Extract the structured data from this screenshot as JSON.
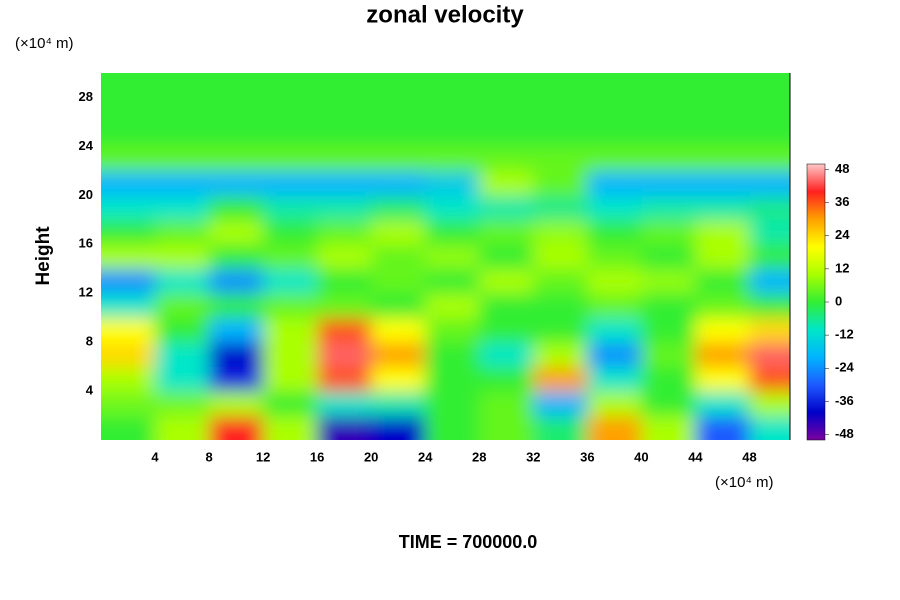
{
  "chart_data": {
    "type": "contourf",
    "title": "zonal velocity",
    "y_label": "Height",
    "y_unit": "(×10⁴ m)",
    "x_unit": "(×10⁴ m)",
    "annotation": "TIME = 700000.0",
    "xlim": [
      0,
      51
    ],
    "ylim": [
      0,
      30
    ],
    "xticks": [
      4,
      8,
      12,
      16,
      20,
      24,
      28,
      32,
      36,
      40,
      44,
      48
    ],
    "yticks": [
      4,
      8,
      12,
      16,
      20,
      24,
      28
    ],
    "clim": [
      -50,
      50
    ],
    "cticks": [
      48,
      36,
      24,
      12,
      0,
      -12,
      -24,
      -36,
      -48
    ],
    "colors": [
      "#7a00a0",
      "#0000c8",
      "#1e5aff",
      "#00b4ff",
      "#00e6c8",
      "#33ee33",
      "#aaff00",
      "#ffff00",
      "#ffa000",
      "#ff2020",
      "#ffc8c8"
    ],
    "x": [
      2,
      6,
      10,
      14,
      18,
      22,
      26,
      30,
      34,
      38,
      42,
      46,
      50
    ],
    "y": [
      1,
      3,
      5,
      7,
      9,
      11,
      13,
      15,
      17,
      19,
      21,
      23,
      25,
      27,
      29
    ],
    "z": [
      [
        0,
        10,
        40,
        10,
        -44,
        -40,
        0,
        4,
        -4,
        30,
        10,
        -30,
        -10
      ],
      [
        5,
        5,
        10,
        0,
        -10,
        -8,
        0,
        4,
        -20,
        10,
        0,
        -10,
        10
      ],
      [
        10,
        -10,
        -36,
        10,
        36,
        20,
        0,
        0,
        30,
        -10,
        0,
        20,
        36
      ],
      [
        24,
        -10,
        -40,
        10,
        44,
        30,
        0,
        -10,
        10,
        -24,
        4,
        30,
        44
      ],
      [
        20,
        0,
        -20,
        10,
        36,
        20,
        4,
        0,
        0,
        -10,
        0,
        20,
        24
      ],
      [
        -10,
        4,
        0,
        4,
        4,
        0,
        10,
        0,
        0,
        4,
        0,
        4,
        0
      ],
      [
        -24,
        -10,
        -24,
        -10,
        0,
        4,
        0,
        10,
        4,
        10,
        8,
        0,
        -20
      ],
      [
        10,
        10,
        0,
        4,
        10,
        4,
        8,
        0,
        10,
        4,
        0,
        10,
        0
      ],
      [
        0,
        4,
        10,
        0,
        4,
        10,
        0,
        4,
        8,
        0,
        4,
        10,
        -8
      ],
      [
        -10,
        -10,
        0,
        -8,
        -8,
        -4,
        -10,
        -8,
        -6,
        -10,
        -8,
        -8,
        -6
      ],
      [
        -20,
        -20,
        -20,
        -20,
        -20,
        -20,
        -16,
        10,
        4,
        -20,
        -20,
        -20,
        -20
      ],
      [
        4,
        4,
        4,
        4,
        4,
        4,
        4,
        4,
        4,
        4,
        4,
        4,
        4
      ],
      [
        0,
        0,
        0,
        0,
        0,
        0,
        0,
        0,
        0,
        0,
        0,
        0,
        0
      ],
      [
        0,
        0,
        0,
        0,
        0,
        0,
        0,
        0,
        0,
        0,
        0,
        0,
        0
      ],
      [
        0,
        0,
        0,
        0,
        0,
        0,
        0,
        0,
        0,
        0,
        0,
        0,
        0
      ]
    ]
  }
}
